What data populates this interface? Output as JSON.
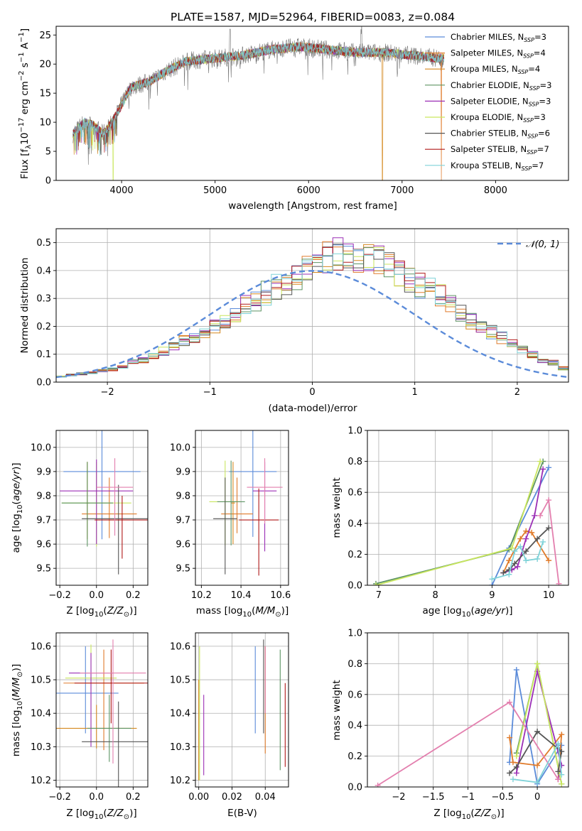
{
  "figure": {
    "title": "PLATE=1587, MJD=52964, FIBERID=0083, z=0.084"
  },
  "colors": {
    "grid": "#b0b0b0",
    "gauss": "#5b8bd9"
  },
  "models": [
    {
      "name": "Chabrier MILES",
      "nssp": "3",
      "color": "#5b8bd9"
    },
    {
      "name": "Salpeter MILES",
      "nssp": "4",
      "color": "#e07b2b"
    },
    {
      "name": "Kroupa MILES",
      "nssp": "4",
      "color": "#d5881f"
    },
    {
      "name": "Chabrier ELODIE",
      "nssp": "3",
      "color": "#5d9463"
    },
    {
      "name": "Salpeter ELODIE",
      "nssp": "3",
      "color": "#9b2fb6"
    },
    {
      "name": "Kroupa ELODIE",
      "nssp": "3",
      "color": "#c9e65e"
    },
    {
      "name": "Chabrier STELIB",
      "nssp": "6",
      "color": "#555555"
    },
    {
      "name": "Salpeter STELIB",
      "nssp": "7",
      "color": "#b01818"
    },
    {
      "name": "Kroupa STELIB",
      "nssp": "7",
      "color": "#7fd2d8"
    }
  ],
  "chart_data": [
    {
      "id": "spectrum",
      "type": "line",
      "title": "PLATE=1587, MJD=52964, FIBERID=0083, z=0.084",
      "xlabel": "wavelength [Angstrom, rest frame]",
      "ylabel": "Flux [f_λ 10^-17 erg cm^-2 s^-1 A^-1]",
      "xlim": [
        3300,
        8780
      ],
      "ylim": [
        0,
        26.5
      ],
      "xticks": [
        4000,
        5000,
        6000,
        7000,
        8000
      ],
      "yticks": [
        0,
        5,
        10,
        15,
        20,
        25
      ],
      "grid": false,
      "legend": "right",
      "continuum": {
        "x": [
          3480,
          3600,
          3700,
          3800,
          3900,
          4000,
          4100,
          4300,
          4500,
          4700,
          5000,
          5300,
          5600,
          5900,
          6200,
          6500,
          6800,
          7100,
          7400
        ],
        "y": [
          8,
          10,
          9.5,
          8,
          10,
          13,
          16,
          17,
          19,
          20.5,
          21,
          21.5,
          22.5,
          23,
          22.5,
          22,
          22,
          21.5,
          21
        ]
      },
      "dropouts": [
        {
          "x": 3910,
          "series": "Kroupa ELODIE"
        },
        {
          "x": 6790,
          "series": "Kroupa MILES"
        },
        {
          "x": 7420,
          "series": "Salpeter MILES"
        }
      ]
    },
    {
      "id": "residuals",
      "type": "step",
      "xlabel": "(data-model)/error",
      "ylabel": "Normed distribution",
      "xlim": [
        -2.5,
        2.5
      ],
      "ylim": [
        0,
        0.55
      ],
      "xticks": [
        -2,
        -1,
        0,
        1,
        2
      ],
      "yticks": [
        0.0,
        0.1,
        0.2,
        0.3,
        0.4,
        0.5
      ],
      "grid": true,
      "legend": "top-right",
      "reference_curve": "N(0,1)",
      "bin_width": 0.1,
      "envelope": [
        0.02,
        0.025,
        0.03,
        0.035,
        0.04,
        0.045,
        0.055,
        0.07,
        0.08,
        0.095,
        0.11,
        0.13,
        0.15,
        0.165,
        0.18,
        0.2,
        0.225,
        0.25,
        0.275,
        0.295,
        0.32,
        0.34,
        0.36,
        0.38,
        0.4,
        0.43,
        0.45,
        0.46,
        0.44,
        0.42,
        0.44,
        0.43,
        0.41,
        0.39,
        0.37,
        0.35,
        0.33,
        0.31,
        0.28,
        0.25,
        0.22,
        0.2,
        0.18,
        0.16,
        0.14,
        0.12,
        0.1,
        0.08,
        0.07,
        0.05
      ]
    },
    {
      "id": "age_vs_z",
      "type": "scatter",
      "xlabel": "Z [log10(Z/Z_sun)]",
      "ylabel": "age [log10(age/yr)]",
      "xlim": [
        -0.22,
        0.28
      ],
      "ylim": [
        9.43,
        10.07
      ],
      "xticks": [
        -0.2,
        0.0,
        0.2
      ],
      "yticks": [
        9.5,
        9.6,
        9.7,
        9.8,
        9.9,
        10.0
      ],
      "grid": true,
      "points": [
        {
          "x": 0.03,
          "y": 9.9,
          "xerr": 0.21,
          "yerr": [
            0.28,
            0.17
          ]
        },
        {
          "x": 0.07,
          "y": 9.725,
          "xerr": 0.15,
          "yerr": [
            0.1,
            0.15
          ]
        },
        {
          "x": -0.05,
          "y": 9.77,
          "xerr": 0.01,
          "yerr": [
            0.15,
            0.17
          ]
        },
        {
          "x": 0.0,
          "y": 9.77,
          "xerr": 0.19,
          "yerr": [
            0.18,
            0.17
          ]
        },
        {
          "x": 0.0,
          "y": 9.82,
          "xerr": 0.2,
          "yerr": [
            0.22,
            0.13
          ]
        },
        {
          "x": -0.05,
          "y": 9.77,
          "xerr": 0.14,
          "yerr": [
            0.18,
            0.17
          ]
        },
        {
          "x": 0.12,
          "y": 9.705,
          "xerr": 0.2,
          "yerr": [
            0.23,
            0.14
          ]
        },
        {
          "x": 0.14,
          "y": 9.7,
          "xerr": 0.15,
          "yerr": [
            0.16,
            0.1
          ]
        },
        {
          "x": 0.1,
          "y": 9.835,
          "xerr": 0.1,
          "yerr": [
            0.2,
            0.12
          ]
        }
      ]
    },
    {
      "id": "age_vs_mass",
      "type": "scatter",
      "xlabel": "mass [log10(M/M_sun)]",
      "ylabel": "",
      "xlim": [
        10.17,
        10.64
      ],
      "ylim": [
        9.43,
        10.07
      ],
      "xticks": [
        10.2,
        10.4,
        10.6
      ],
      "yticks": [
        9.5,
        9.6,
        9.7,
        9.8,
        9.9,
        10.0
      ],
      "grid": true,
      "points": [
        {
          "x": 10.46,
          "y": 9.9,
          "xerr": 0.12,
          "yerr": [
            0.27,
            0.17
          ]
        },
        {
          "x": 10.38,
          "y": 9.725,
          "xerr": 0.08,
          "yerr": [
            0.08,
            0.15
          ]
        },
        {
          "x": 10.36,
          "y": 9.77,
          "xerr": 0.01,
          "yerr": [
            0.17,
            0.17
          ]
        },
        {
          "x": 10.32,
          "y": 9.775,
          "xerr": 0.08,
          "yerr": [
            0.18,
            0.17
          ]
        },
        {
          "x": 10.52,
          "y": 9.82,
          "xerr": 0.06,
          "yerr": [
            0.25,
            0.12
          ]
        },
        {
          "x": 10.35,
          "y": 9.775,
          "xerr": 0.07,
          "yerr": [
            0.18,
            0.17
          ]
        },
        {
          "x": 10.32,
          "y": 9.705,
          "xerr": 0.06,
          "yerr": [
            0.23,
            0.17
          ]
        },
        {
          "x": 10.49,
          "y": 9.7,
          "xerr": 0.1,
          "yerr": [
            0.23,
            0.13
          ]
        },
        {
          "x": 10.52,
          "y": 9.835,
          "xerr": 0.09,
          "yerr": [
            0.15,
            0.12
          ]
        }
      ]
    },
    {
      "id": "weight_vs_age",
      "type": "line",
      "xlabel": "age [log10(age/yr)]",
      "ylabel": "mass weight",
      "xlim": [
        6.8,
        10.35
      ],
      "ylim": [
        0.0,
        1.0
      ],
      "xticks": [
        7,
        8,
        9,
        10
      ],
      "yticks": [
        0.0,
        0.2,
        0.4,
        0.6,
        0.8,
        1.0
      ],
      "grid": true,
      "series": [
        {
          "color": "#5b8bd9",
          "x": [
            9.0,
            9.3,
            10.0
          ],
          "y": [
            0.0,
            0.24,
            0.76
          ]
        },
        {
          "color": "#e07b2b",
          "x": [
            9.2,
            9.3,
            9.5,
            9.6,
            9.7,
            10.0
          ],
          "y": [
            0.08,
            0.16,
            0.3,
            0.35,
            0.34,
            0.16
          ]
        },
        {
          "color": "#5d9463",
          "x": [
            6.95,
            9.3,
            9.9
          ],
          "y": [
            0.01,
            0.23,
            0.8
          ]
        },
        {
          "color": "#9b2fb6",
          "x": [
            9.2,
            9.35,
            9.45,
            9.6,
            9.75,
            9.9
          ],
          "y": [
            0.08,
            0.1,
            0.12,
            0.3,
            0.45,
            0.75
          ]
        },
        {
          "color": "#c9e65e",
          "x": [
            6.95,
            9.35,
            9.85
          ],
          "y": [
            0.0,
            0.24,
            0.8
          ]
        },
        {
          "color": "#555555",
          "x": [
            9.2,
            9.3,
            9.4,
            9.6,
            9.8,
            10.0
          ],
          "y": [
            0.08,
            0.1,
            0.14,
            0.22,
            0.3,
            0.37
          ]
        },
        {
          "color": "#e37fae",
          "x": [
            9.85,
            10.0,
            10.18
          ],
          "y": [
            0.45,
            0.55,
            0.01
          ]
        },
        {
          "color": "#7fd2d8",
          "x": [
            9.0,
            9.3,
            9.4,
            9.5,
            9.6,
            9.8,
            9.9
          ],
          "y": [
            0.04,
            0.07,
            0.22,
            0.25,
            0.16,
            0.17,
            0.28
          ]
        }
      ]
    },
    {
      "id": "mass_vs_z",
      "type": "scatter",
      "xlabel": "Z [log10(Z/Z_sun)]",
      "ylabel": "mass [log10(M/M_sun)]",
      "xlim": [
        -0.22,
        0.28
      ],
      "ylim": [
        10.18,
        10.64
      ],
      "xticks": [
        -0.2,
        0.0,
        0.2
      ],
      "yticks": [
        10.2,
        10.3,
        10.4,
        10.5,
        10.6
      ],
      "grid": true,
      "points": [
        {
          "x": -0.06,
          "y": 10.46,
          "xerr": 0.18,
          "yerr": [
            0.12,
            0.14
          ]
        },
        {
          "x": 0.04,
          "y": 10.49,
          "xerr": 0.22,
          "yerr": [
            0.2,
            0.1
          ]
        },
        {
          "x": 0.0,
          "y": 10.355,
          "xerr": 0.22,
          "yerr": [
            0.06,
            0.07
          ]
        },
        {
          "x": -0.03,
          "y": 10.505,
          "xerr": 0.14,
          "yerr": [
            0.15,
            0.1
          ]
        },
        {
          "x": -0.03,
          "y": 10.52,
          "xerr": 0.12,
          "yerr": [
            0.22,
            0.06
          ]
        },
        {
          "x": 0.07,
          "y": 10.355,
          "xerr": 0.12,
          "yerr": [
            0.1,
            0.1
          ]
        },
        {
          "x": 0.12,
          "y": 10.315,
          "xerr": 0.2,
          "yerr": [
            0.14,
            0.12
          ]
        },
        {
          "x": 0.08,
          "y": 10.49,
          "xerr": 0.2,
          "yerr": [
            0.12,
            0.1
          ]
        },
        {
          "x": 0.09,
          "y": 10.52,
          "xerr": 0.18,
          "yerr": [
            0.27,
            0.1
          ]
        }
      ]
    },
    {
      "id": "mass_vs_ebv",
      "type": "scatter",
      "xlabel": "E(B-V)",
      "ylabel": "",
      "xlim": [
        -0.002,
        0.054
      ],
      "ylim": [
        10.18,
        10.64
      ],
      "xticks": [
        0.0,
        0.02,
        0.04
      ],
      "yticks": [
        10.2,
        10.3,
        10.4,
        10.5,
        10.6
      ],
      "grid": true,
      "points": [
        {
          "x": 0.034,
          "y": 10.47,
          "yerr": [
            0.13,
            0.13
          ]
        },
        {
          "x": 0.04,
          "y": 10.46,
          "yerr": [
            0.18,
            0.14
          ]
        },
        {
          "x": 0.0,
          "y": 10.4,
          "yerr": [
            0.2,
            0.1
          ]
        },
        {
          "x": 0.0005,
          "y": 10.5,
          "yerr": [
            0.3,
            0.1
          ]
        },
        {
          "x": 0.003,
          "y": 10.335,
          "yerr": [
            0.12,
            0.12
          ]
        },
        {
          "x": 0.049,
          "y": 10.41,
          "yerr": [
            0.18,
            0.18
          ]
        },
        {
          "x": 0.039,
          "y": 10.46,
          "yerr": [
            0.12,
            0.16
          ]
        },
        {
          "x": 0.052,
          "y": 10.37,
          "yerr": [
            0.13,
            0.12
          ]
        },
        {
          "x": 0.04,
          "y": 10.5,
          "yerr": [
            0.1,
            0.1
          ]
        }
      ]
    },
    {
      "id": "weight_vs_z",
      "type": "line",
      "xlabel": "Z [log10(Z/Z_sun)]",
      "ylabel": "mass weight",
      "xlim": [
        -2.45,
        0.45
      ],
      "ylim": [
        0.0,
        1.0
      ],
      "xticks": [
        -2.0,
        -1.5,
        -1.0,
        -0.5,
        0.0
      ],
      "yticks": [
        0.0,
        0.2,
        0.4,
        0.6,
        0.8,
        1.0
      ],
      "grid": true,
      "series": [
        {
          "color": "#5b8bd9",
          "x": [
            -0.4,
            -0.3,
            0.0,
            0.35
          ],
          "y": [
            0.16,
            0.76,
            0.02,
            0.27
          ]
        },
        {
          "color": "#e07b2b",
          "x": [
            -0.4,
            -0.35,
            0.0,
            0.35,
            0.3
          ],
          "y": [
            0.32,
            0.16,
            0.14,
            0.34,
            0.05
          ]
        },
        {
          "color": "#5d9463",
          "x": [
            -0.3,
            0.0,
            0.35
          ],
          "y": [
            0.22,
            0.8,
            0.02
          ]
        },
        {
          "color": "#9b2fb6",
          "x": [
            -0.3,
            0.0,
            0.35,
            0.3
          ],
          "y": [
            0.09,
            0.75,
            0.14,
            0.05
          ]
        },
        {
          "color": "#c9e65e",
          "x": [
            -0.3,
            0.0,
            0.35
          ],
          "y": [
            0.2,
            0.8,
            0.02
          ]
        },
        {
          "color": "#555555",
          "x": [
            -0.4,
            -0.3,
            0.0,
            0.35,
            0.3
          ],
          "y": [
            0.09,
            0.13,
            0.36,
            0.23,
            0.1
          ]
        },
        {
          "color": "#e37fae",
          "x": [
            -2.3,
            -0.4,
            0.3
          ],
          "y": [
            0.01,
            0.55,
            0.05
          ]
        },
        {
          "color": "#7fd2d8",
          "x": [
            -0.35,
            0.0,
            0.3,
            0.35
          ],
          "y": [
            0.05,
            0.03,
            0.28,
            0.08
          ]
        }
      ]
    }
  ]
}
